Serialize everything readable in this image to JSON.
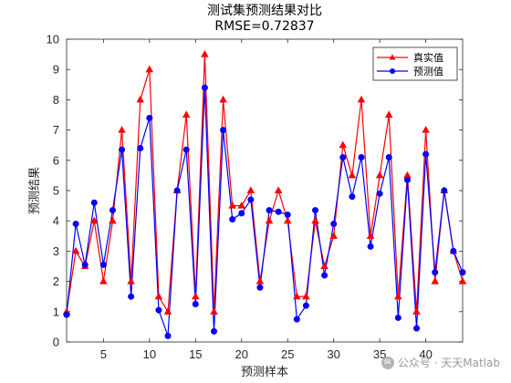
{
  "chart_data": {
    "type": "line",
    "title": "测试集预测结果对比",
    "subtitle": "RMSE=0.72837",
    "xlabel": "预测样本",
    "ylabel": "预测结果",
    "xlim": [
      1,
      44
    ],
    "ylim": [
      0,
      10
    ],
    "xticks": [
      5,
      10,
      15,
      20,
      25,
      30,
      35,
      40
    ],
    "yticks": [
      0,
      1,
      2,
      3,
      4,
      5,
      6,
      7,
      8,
      9,
      10
    ],
    "grid": false,
    "legend_position": "top-right",
    "x": [
      1,
      2,
      3,
      4,
      5,
      6,
      7,
      8,
      9,
      10,
      11,
      12,
      13,
      14,
      15,
      16,
      17,
      18,
      19,
      20,
      21,
      22,
      23,
      24,
      25,
      26,
      27,
      28,
      29,
      30,
      31,
      32,
      33,
      34,
      35,
      36,
      37,
      38,
      39,
      40,
      41,
      42,
      43,
      44
    ],
    "series": [
      {
        "name": "真实值",
        "color": "#ff0000",
        "marker": "triangle",
        "values": [
          1.0,
          3.0,
          2.5,
          4.0,
          2.0,
          4.0,
          7.0,
          2.0,
          8.0,
          9.0,
          1.5,
          1.0,
          5.0,
          7.5,
          1.5,
          9.5,
          1.0,
          8.0,
          4.5,
          4.5,
          5.0,
          2.0,
          4.0,
          5.0,
          4.0,
          1.5,
          1.5,
          4.0,
          2.5,
          3.5,
          6.5,
          5.5,
          8.0,
          3.5,
          5.5,
          7.5,
          1.5,
          5.5,
          1.0,
          7.0,
          2.0,
          5.0,
          3.0,
          2.0
        ]
      },
      {
        "name": "预测值",
        "color": "#0000ff",
        "marker": "circle",
        "values": [
          0.9,
          3.9,
          2.55,
          4.6,
          2.55,
          4.35,
          6.35,
          1.5,
          6.4,
          7.4,
          1.05,
          0.2,
          5.0,
          6.35,
          1.25,
          8.4,
          0.35,
          7.0,
          4.05,
          4.25,
          4.7,
          1.8,
          4.35,
          4.3,
          4.2,
          0.75,
          1.2,
          4.35,
          2.2,
          3.9,
          6.1,
          4.8,
          6.1,
          3.15,
          4.9,
          6.1,
          0.8,
          5.35,
          0.45,
          6.2,
          2.3,
          5.0,
          3.0,
          2.3
        ]
      }
    ]
  },
  "watermark": {
    "icon": "wechat-icon",
    "text": "公众号 · 天天Matlab"
  }
}
